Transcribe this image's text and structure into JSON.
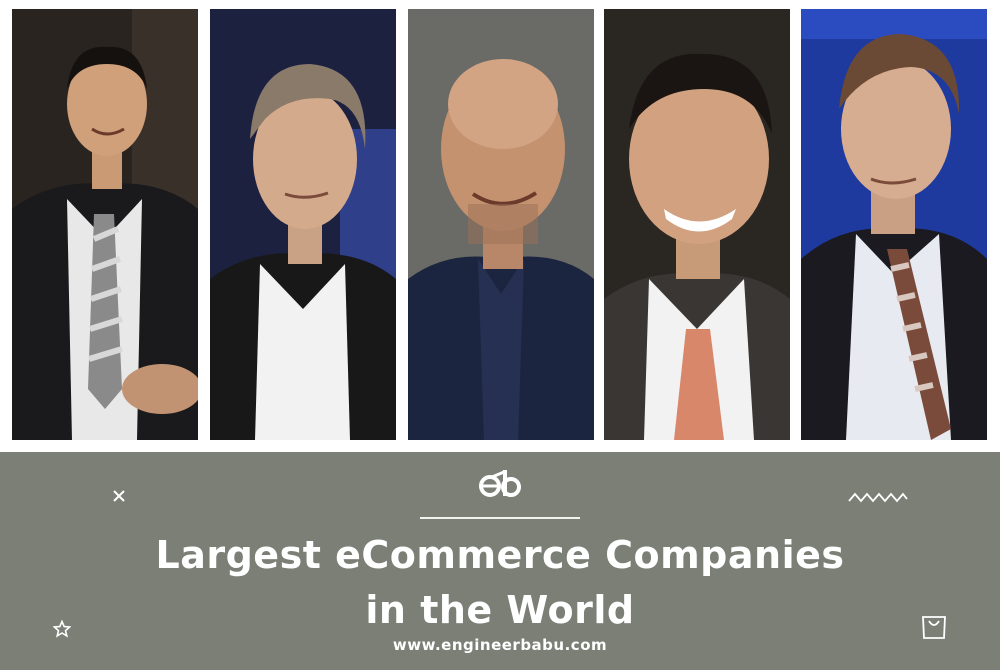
{
  "banner": {
    "title_line1": "Largest eCommerce Companies",
    "title_line2": "in the World",
    "website": "www.engineerbabu.com",
    "logo_text": "eb",
    "background_color": "#7b7f76"
  },
  "photos": [
    {
      "subject": "executive-portrait-1"
    },
    {
      "subject": "executive-portrait-2"
    },
    {
      "subject": "executive-portrait-3"
    },
    {
      "subject": "executive-portrait-4"
    },
    {
      "subject": "executive-portrait-5"
    }
  ],
  "decorations": [
    "close-icon",
    "star-icon",
    "zigzag-icon",
    "shopping-bag-icon"
  ]
}
